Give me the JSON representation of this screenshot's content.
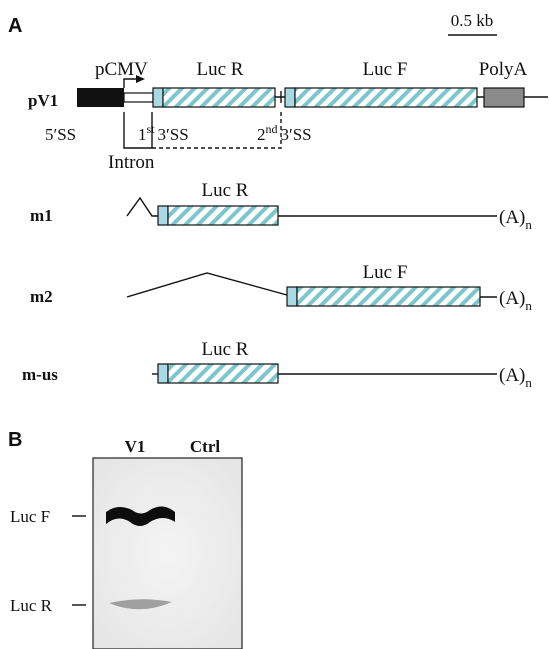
{
  "panel_a": {
    "label": "A",
    "scale_bar": "0.5 kb",
    "construct": {
      "name": "pV1",
      "promoter": "pCMV",
      "gene_1": "Luc R",
      "gene_2": "Luc F",
      "polya": "PolyA",
      "splice_5": "5′SS",
      "splice_1st": {
        "number": "1",
        "ordinal": "st",
        "site": "3′SS"
      },
      "splice_2nd": {
        "number": "2",
        "ordinal": "nd",
        "site": "3′SS"
      },
      "intron": "Intron"
    },
    "transcripts": [
      {
        "name": "m1",
        "gene": "Luc R",
        "tail": {
          "text": "(A)",
          "subscript": "n"
        }
      },
      {
        "name": "m2",
        "gene": "Luc F",
        "tail": {
          "text": "(A)",
          "subscript": "n"
        }
      },
      {
        "name": "m-us",
        "gene": "Luc R",
        "tail": {
          "text": "(A)",
          "subscript": "n"
        }
      }
    ]
  },
  "panel_b": {
    "label": "B",
    "lanes": [
      "V1",
      "Ctrl"
    ],
    "bands": [
      "Luc F",
      "Luc R"
    ]
  }
}
